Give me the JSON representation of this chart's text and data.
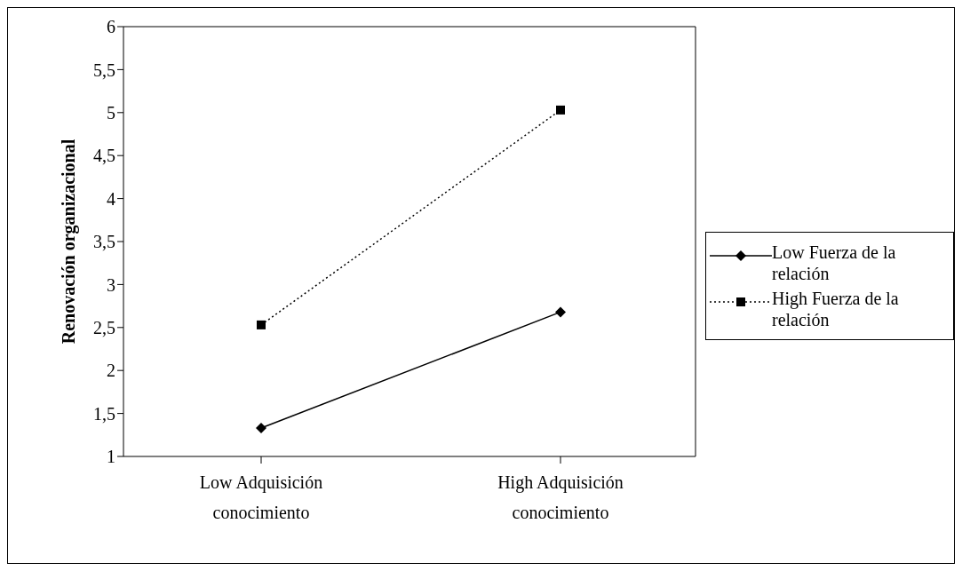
{
  "chart_data": {
    "type": "line",
    "ylabel": "Renovación organizacional",
    "categories": [
      "Low Adquisición conocimiento",
      "High Adquisición conocimiento"
    ],
    "series": [
      {
        "name": "Low Fuerza de la relación",
        "color": "#000000",
        "marker": "diamond",
        "line_style": "solid",
        "values": [
          1.33,
          2.68
        ]
      },
      {
        "name": "High Fuerza de la relación",
        "color": "#000000",
        "marker": "square",
        "line_style": "dotted",
        "values": [
          2.53,
          5.03
        ]
      }
    ],
    "ylim": [
      1,
      6
    ],
    "yticks": [
      1,
      {
        "value": 1.5,
        "label": "1,5"
      },
      2,
      {
        "value": 2.5,
        "label": "2,5"
      },
      3,
      {
        "value": 3.5,
        "label": "3,5"
      },
      4,
      {
        "value": 4.5,
        "label": "4,5"
      },
      5,
      {
        "value": 5.5,
        "label": "5,5"
      },
      6
    ],
    "grid": false,
    "legend": "right"
  }
}
